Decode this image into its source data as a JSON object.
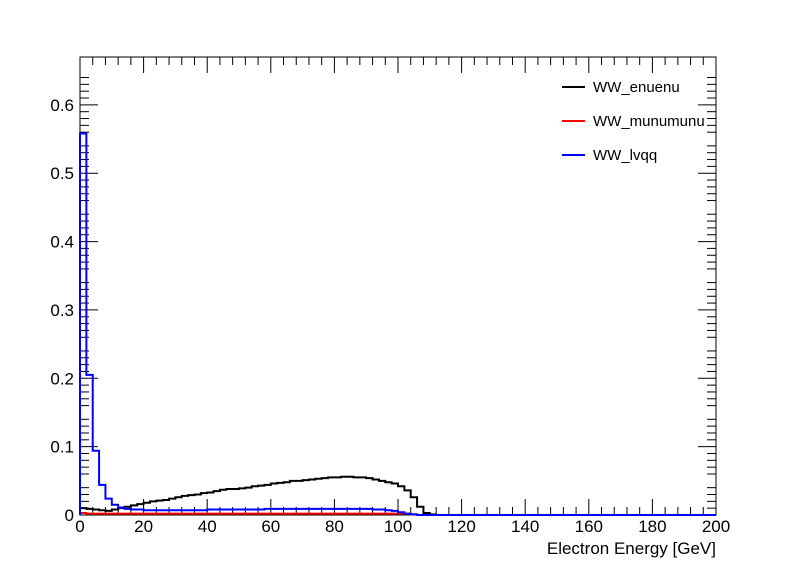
{
  "chart_data": {
    "type": "histogram",
    "title": "",
    "xlabel": "Electron Energy [GeV]",
    "ylabel": "",
    "xlim": [
      0,
      200
    ],
    "ylim": [
      0,
      0.67
    ],
    "bin_width": 2,
    "x_ticks": [
      0,
      20,
      40,
      60,
      80,
      100,
      120,
      140,
      160,
      180,
      200
    ],
    "y_ticks": [
      0,
      0.1,
      0.2,
      0.3,
      0.4,
      0.5,
      0.6
    ],
    "y_tick_labels": [
      "0",
      "0.1",
      "0.2",
      "0.3",
      "0.4",
      "0.5",
      "0.6"
    ],
    "grid": false,
    "legend_position": "top-right",
    "series": [
      {
        "name": "WW_enuenu",
        "color": "#000000",
        "values": [
          0.01,
          0.009,
          0.008,
          0.007,
          0.006,
          0.008,
          0.01,
          0.012,
          0.014,
          0.016,
          0.018,
          0.02,
          0.021,
          0.022,
          0.024,
          0.026,
          0.028,
          0.029,
          0.03,
          0.032,
          0.033,
          0.035,
          0.037,
          0.038,
          0.038,
          0.039,
          0.04,
          0.042,
          0.043,
          0.044,
          0.046,
          0.047,
          0.048,
          0.05,
          0.05,
          0.051,
          0.052,
          0.053,
          0.054,
          0.055,
          0.055,
          0.056,
          0.056,
          0.055,
          0.055,
          0.054,
          0.052,
          0.05,
          0.048,
          0.046,
          0.042,
          0.036,
          0.026,
          0.012,
          0.003,
          0.001
        ]
      },
      {
        "name": "WW_munumunu",
        "color": "#ff0000",
        "values": [
          0.003,
          0.002,
          0.002,
          0.002,
          0.002,
          0.002,
          0.002,
          0.002,
          0.002,
          0.002,
          0.002,
          0.002,
          0.002,
          0.002,
          0.002,
          0.002,
          0.002,
          0.002,
          0.002,
          0.002,
          0.002,
          0.002,
          0.002,
          0.002,
          0.002,
          0.002,
          0.002,
          0.002,
          0.002,
          0.002,
          0.002,
          0.002,
          0.002,
          0.002,
          0.002,
          0.002,
          0.002,
          0.002,
          0.002,
          0.002,
          0.002,
          0.002,
          0.002,
          0.002,
          0.002,
          0.002,
          0.002,
          0.002,
          0.002,
          0.002,
          0.002,
          0.002,
          0.001
        ]
      },
      {
        "name": "WW_lvqq",
        "color": "#0000ff",
        "values": [
          0.558,
          0.205,
          0.094,
          0.044,
          0.024,
          0.015,
          0.011,
          0.009,
          0.008,
          0.008,
          0.007,
          0.007,
          0.007,
          0.007,
          0.007,
          0.007,
          0.007,
          0.007,
          0.007,
          0.007,
          0.008,
          0.008,
          0.008,
          0.008,
          0.008,
          0.008,
          0.008,
          0.008,
          0.008,
          0.009,
          0.009,
          0.009,
          0.009,
          0.009,
          0.009,
          0.009,
          0.009,
          0.009,
          0.009,
          0.009,
          0.009,
          0.009,
          0.009,
          0.009,
          0.009,
          0.009,
          0.008,
          0.008,
          0.007,
          0.006,
          0.004,
          0.002,
          0.001
        ]
      }
    ]
  }
}
